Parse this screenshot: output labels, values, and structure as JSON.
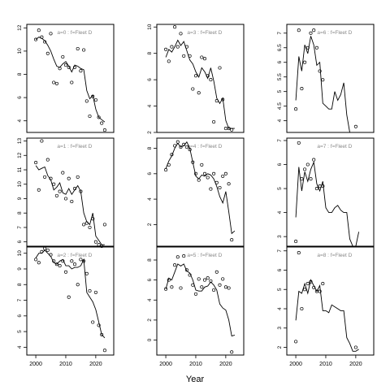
{
  "figure": {
    "xlabel": "Year"
  },
  "chart_data": [
    {
      "type": "line",
      "title": "a=0  :  f=Fleet D",
      "xlim": [
        1997,
        2026
      ],
      "ylim": [
        3.0,
        12.3
      ],
      "yticks": [
        4,
        6,
        8,
        10,
        12
      ],
      "xticks": [],
      "series": [
        {
          "kind": "points",
          "x": [
            2000,
            2001,
            2002,
            2003,
            2004,
            2005,
            2006,
            2007,
            2008,
            2009,
            2010,
            2011,
            2012,
            2013,
            2014,
            2015,
            2016,
            2017,
            2018,
            2019,
            2020,
            2021,
            2022,
            2023
          ],
          "y": [
            11.0,
            11.8,
            11.2,
            10.8,
            9.8,
            11.5,
            7.3,
            7.2,
            8.5,
            9.5,
            8.8,
            8.6,
            7.3,
            8.6,
            10.2,
            8.3,
            10.1,
            5.7,
            4.4,
            6.1,
            5.8,
            4.3,
            3.8,
            3.2
          ]
        },
        {
          "kind": "line",
          "x": [
            2000,
            2001,
            2002,
            2003,
            2004,
            2005,
            2006,
            2007,
            2008,
            2009,
            2010,
            2011,
            2012,
            2013,
            2014,
            2015,
            2016,
            2017,
            2018,
            2019,
            2020,
            2021,
            2022,
            2023
          ],
          "y": [
            11.0,
            11.2,
            11.1,
            10.9,
            10.5,
            10.0,
            9.3,
            8.7,
            8.6,
            8.9,
            9.1,
            8.7,
            8.2,
            8.8,
            8.7,
            8.5,
            8.4,
            6.6,
            5.9,
            6.2,
            5.0,
            4.3,
            4.1,
            3.9
          ]
        }
      ]
    },
    {
      "type": "line",
      "title": "a=3  :  f=Fleet D",
      "xlim": [
        1997,
        2026
      ],
      "ylim": [
        2.0,
        10.2
      ],
      "yticks": [
        2,
        4,
        6,
        8,
        10
      ],
      "xticks": [],
      "series": [
        {
          "kind": "points",
          "x": [
            2000,
            2001,
            2002,
            2003,
            2004,
            2005,
            2006,
            2007,
            2008,
            2009,
            2010,
            2011,
            2012,
            2013,
            2014,
            2015,
            2016,
            2017,
            2018,
            2019,
            2020,
            2021,
            2022
          ],
          "y": [
            8.3,
            7.4,
            8.5,
            10.0,
            8.5,
            9.5,
            7.8,
            8.5,
            7.8,
            5.3,
            6.3,
            5.0,
            7.7,
            7.6,
            6.3,
            6.0,
            2.8,
            4.4,
            6.9,
            4.5,
            2.3,
            2.3,
            2.2
          ]
        },
        {
          "kind": "line",
          "x": [
            2000,
            2001,
            2002,
            2003,
            2004,
            2005,
            2006,
            2007,
            2008,
            2009,
            2010,
            2011,
            2012,
            2013,
            2014,
            2015,
            2016,
            2017,
            2018,
            2019,
            2020,
            2021,
            2022,
            2023
          ],
          "y": [
            7.7,
            8.3,
            8.1,
            8.5,
            9.0,
            8.6,
            8.9,
            8.2,
            7.5,
            7.2,
            6.6,
            6.2,
            6.9,
            6.6,
            6.1,
            6.9,
            5.9,
            4.6,
            4.2,
            4.6,
            2.9,
            2.3,
            2.3,
            2.3
          ]
        }
      ]
    },
    {
      "type": "line",
      "title": "a=6  :  f=Fleet D",
      "xlim": [
        1997,
        2026
      ],
      "ylim": [
        3.6,
        7.3
      ],
      "yticks": [
        4.0,
        4.5,
        5.0,
        5.5,
        6.0,
        6.5,
        7.0
      ],
      "xticks": [],
      "series": [
        {
          "kind": "points",
          "x": [
            2000,
            2001,
            2002,
            2003,
            2004,
            2005,
            2006,
            2007,
            2008,
            2009,
            2020
          ],
          "y": [
            4.4,
            7.1,
            5.1,
            6.0,
            6.5,
            7.0,
            7.1,
            6.5,
            5.7,
            5.4,
            3.8
          ]
        },
        {
          "kind": "line",
          "x": [
            2000,
            2001,
            2002,
            2003,
            2004,
            2005,
            2006,
            2007,
            2008,
            2009,
            2010,
            2011,
            2012,
            2013,
            2014,
            2015,
            2016,
            2017,
            2018,
            2019
          ],
          "y": [
            4.7,
            6.2,
            5.7,
            6.6,
            6.3,
            6.9,
            6.6,
            5.9,
            6.0,
            4.6,
            4.5,
            4.4,
            4.4,
            5.0,
            4.7,
            4.9,
            5.3,
            4.2,
            3.6,
            3.6
          ]
        }
      ]
    },
    {
      "type": "line",
      "title": "a=1  :  f=Fleet D",
      "xlim": [
        1997,
        2026
      ],
      "ylim": [
        5.7,
        13.2
      ],
      "yticks": [
        6,
        7,
        8,
        9,
        10,
        11,
        12,
        13
      ],
      "xticks": [],
      "series": [
        {
          "kind": "points",
          "x": [
            2000,
            2001,
            2002,
            2003,
            2004,
            2005,
            2006,
            2007,
            2008,
            2009,
            2010,
            2011,
            2012,
            2013,
            2014,
            2015,
            2016,
            2017,
            2018,
            2019,
            2020,
            2021,
            2022,
            2023
          ],
          "y": [
            11.5,
            9.6,
            13.0,
            10.5,
            11.7,
            10.4,
            10.0,
            9.2,
            9.5,
            10.8,
            9.0,
            10.4,
            8.8,
            9.7,
            10.5,
            9.5,
            7.2,
            7.3,
            7.0,
            7.6,
            6.0,
            5.8,
            5.7,
            7.2
          ]
        },
        {
          "kind": "line",
          "x": [
            2000,
            2001,
            2002,
            2003,
            2004,
            2005,
            2006,
            2007,
            2008,
            2009,
            2010,
            2011,
            2012,
            2013,
            2014,
            2015,
            2016,
            2017,
            2018,
            2019,
            2020,
            2021,
            2022,
            2023
          ],
          "y": [
            11.3,
            11.0,
            11.1,
            11.2,
            10.6,
            10.3,
            9.6,
            9.8,
            10.1,
            9.4,
            9.3,
            9.7,
            9.3,
            9.6,
            9.9,
            9.5,
            8.0,
            7.4,
            7.2,
            8.0,
            6.4,
            6.1,
            5.8,
            5.8
          ]
        }
      ]
    },
    {
      "type": "line",
      "title": "a=4  :  f=Fleet D",
      "xlim": [
        1997,
        2026
      ],
      "ylim": [
        0.3,
        8.8
      ],
      "yticks": [
        2,
        4,
        6,
        8
      ],
      "xticks": [],
      "series": [
        {
          "kind": "points",
          "x": [
            2000,
            2001,
            2002,
            2003,
            2004,
            2005,
            2006,
            2007,
            2008,
            2009,
            2010,
            2011,
            2012,
            2013,
            2014,
            2015,
            2016,
            2017,
            2018,
            2019,
            2020,
            2021,
            2022
          ],
          "y": [
            6.3,
            6.7,
            7.5,
            8.2,
            8.5,
            8.1,
            8.3,
            8.1,
            7.9,
            6.9,
            6.0,
            5.5,
            6.7,
            6.0,
            5.7,
            4.8,
            6.0,
            5.3,
            4.9,
            5.8,
            6.0,
            5.2,
            0.8
          ]
        },
        {
          "kind": "line",
          "x": [
            2000,
            2001,
            2002,
            2003,
            2004,
            2005,
            2006,
            2007,
            2008,
            2009,
            2010,
            2011,
            2012,
            2013,
            2014,
            2015,
            2016,
            2017,
            2018,
            2019,
            2020,
            2021,
            2022,
            2023
          ],
          "y": [
            6.4,
            7.0,
            7.4,
            8.0,
            8.4,
            8.1,
            8.2,
            8.5,
            8.0,
            6.9,
            5.8,
            5.6,
            5.9,
            5.8,
            6.0,
            5.9,
            5.6,
            5.0,
            4.2,
            3.7,
            4.6,
            3.0,
            1.3,
            1.5
          ]
        }
      ]
    },
    {
      "type": "line",
      "title": "a=7  :  f=Fleet D",
      "xlim": [
        1997,
        2026
      ],
      "ylim": [
        2.6,
        7.1
      ],
      "yticks": [
        3,
        4,
        5,
        6,
        7
      ],
      "xticks": [],
      "series": [
        {
          "kind": "points",
          "x": [
            2000,
            2001,
            2002,
            2003,
            2004,
            2005,
            2006,
            2007,
            2008,
            2009
          ],
          "y": [
            2.8,
            6.9,
            5.4,
            5.8,
            6.0,
            5.4,
            6.2,
            5.0,
            5.1,
            5.1
          ]
        },
        {
          "kind": "line",
          "x": [
            2000,
            2001,
            2002,
            2003,
            2004,
            2005,
            2006,
            2007,
            2008,
            2009,
            2010,
            2011,
            2012,
            2013,
            2014,
            2015,
            2016,
            2017,
            2018,
            2019,
            2020,
            2021
          ],
          "y": [
            3.8,
            5.9,
            4.9,
            5.7,
            5.3,
            5.8,
            6.1,
            5.2,
            4.9,
            5.3,
            4.2,
            4.0,
            4.0,
            4.2,
            4.3,
            4.1,
            4.0,
            4.0,
            2.9,
            2.6,
            2.6,
            3.2
          ]
        }
      ]
    },
    {
      "type": "line",
      "title": "a=2  :  f=Fleet D",
      "xlim": [
        1997,
        2026
      ],
      "ylim": [
        3.5,
        10.4
      ],
      "yticks": [
        4,
        5,
        6,
        7,
        8,
        9,
        10
      ],
      "xticks": [
        2000,
        2010,
        2020
      ],
      "series": [
        {
          "kind": "points",
          "x": [
            2000,
            2001,
            2002,
            2003,
            2004,
            2005,
            2006,
            2007,
            2008,
            2009,
            2010,
            2011,
            2012,
            2013,
            2014,
            2015,
            2016,
            2017,
            2018,
            2019,
            2020,
            2021,
            2022,
            2023
          ],
          "y": [
            9.6,
            9.4,
            10.1,
            10.3,
            10.2,
            9.9,
            9.5,
            9.3,
            9.2,
            9.5,
            8.8,
            7.2,
            9.5,
            9.3,
            8.0,
            9.6,
            9.5,
            8.7,
            7.6,
            5.6,
            7.5,
            5.4,
            4.8,
            3.8
          ]
        },
        {
          "kind": "line",
          "x": [
            2000,
            2001,
            2002,
            2003,
            2004,
            2005,
            2006,
            2007,
            2008,
            2009,
            2010,
            2011,
            2012,
            2013,
            2014,
            2015,
            2016,
            2017,
            2018,
            2019,
            2020,
            2021,
            2022,
            2023
          ],
          "y": [
            9.7,
            10.0,
            10.0,
            10.2,
            10.0,
            9.8,
            9.4,
            9.3,
            9.5,
            9.6,
            9.2,
            9.2,
            9.0,
            9.1,
            9.1,
            9.2,
            9.6,
            7.5,
            7.2,
            6.9,
            6.4,
            5.6,
            4.8,
            4.6
          ]
        }
      ]
    },
    {
      "type": "line",
      "title": "a=5  :  f=Fleet D",
      "xlim": [
        1997,
        2026
      ],
      "ylim": [
        -1.5,
        9.3
      ],
      "yticks": [
        0,
        2,
        4,
        6,
        8
      ],
      "xticks": [
        2000,
        2010,
        2020
      ],
      "series": [
        {
          "kind": "points",
          "x": [
            2000,
            2001,
            2002,
            2003,
            2004,
            2005,
            2006,
            2007,
            2008,
            2009,
            2010,
            2011,
            2012,
            2013,
            2014,
            2015,
            2016,
            2017,
            2018,
            2019,
            2020,
            2021,
            2022
          ],
          "y": [
            5.1,
            6.0,
            5.3,
            7.5,
            8.3,
            5.2,
            8.4,
            7.0,
            6.5,
            5.5,
            4.6,
            6.1,
            5.3,
            6.0,
            6.2,
            5.9,
            5.0,
            6.8,
            5.5,
            6.1,
            5.3,
            5.2,
            -1.2
          ]
        },
        {
          "kind": "line",
          "x": [
            2000,
            2001,
            2002,
            2003,
            2004,
            2005,
            2006,
            2007,
            2008,
            2009,
            2010,
            2011,
            2012,
            2013,
            2014,
            2015,
            2016,
            2017,
            2018,
            2019,
            2020,
            2021,
            2022,
            2023
          ],
          "y": [
            5.1,
            6.2,
            6.0,
            6.8,
            7.6,
            7.4,
            7.6,
            6.9,
            6.7,
            6.0,
            5.0,
            4.9,
            4.9,
            5.3,
            5.4,
            5.8,
            5.5,
            5.0,
            3.6,
            3.2,
            3.0,
            2.0,
            0.4,
            0.5
          ]
        }
      ]
    },
    {
      "type": "line",
      "title": "a=8  :  f=Fleet D",
      "xlim": [
        1997,
        2026
      ],
      "ylim": [
        1.6,
        7.2
      ],
      "yticks": [
        2,
        3,
        4,
        5,
        6,
        7
      ],
      "xticks": [
        2000,
        2010,
        2020
      ],
      "series": [
        {
          "kind": "points",
          "x": [
            2000,
            2001,
            2002,
            2003,
            2004,
            2005,
            2006,
            2007,
            2008,
            2009,
            2020
          ],
          "y": [
            2.3,
            6.9,
            4.0,
            5.0,
            5.3,
            5.4,
            5.1,
            4.9,
            4.9,
            5.3,
            2.0
          ]
        },
        {
          "kind": "line",
          "x": [
            2000,
            2001,
            2002,
            2003,
            2004,
            2005,
            2006,
            2007,
            2008,
            2009,
            2010,
            2011,
            2012,
            2013,
            2014,
            2015,
            2016,
            2017,
            2018,
            2019,
            2020,
            2021
          ],
          "y": [
            3.4,
            4.9,
            4.8,
            5.3,
            4.8,
            5.5,
            5.2,
            4.9,
            5.2,
            3.9,
            3.9,
            3.8,
            4.2,
            4.1,
            4.0,
            3.9,
            3.9,
            2.5,
            2.2,
            1.8,
            1.8,
            1.9
          ]
        }
      ]
    }
  ]
}
